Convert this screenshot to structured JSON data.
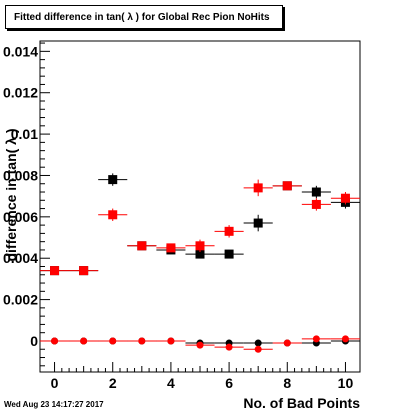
{
  "header": {
    "title": "Fitted difference in tan( λ ) for Global Rec Pion NoHits"
  },
  "footer": {
    "timestamp": "Wed Aug 23 14:17:27 2017"
  },
  "chart_data": {
    "type": "scatter",
    "title": "Fitted difference in tan( λ ) for Global Rec Pion NoHits",
    "xlabel": "No. of Bad Points",
    "ylabel": "difference in tan( λ )",
    "xlim": [
      -0.5,
      10.5
    ],
    "ylim": [
      -0.0015,
      0.0145
    ],
    "x_ticks": [
      "0",
      "2",
      "4",
      "6",
      "8",
      "10"
    ],
    "y_ticks": [
      "0",
      "0.002",
      "0.004",
      "0.006",
      "0.008",
      "0.01",
      "0.012",
      "0.014"
    ],
    "grid": false,
    "series": [
      {
        "marker": "square",
        "color": "#000000",
        "x": [
          0,
          1,
          2,
          3,
          4,
          5,
          6,
          7,
          8,
          9,
          10
        ],
        "y": [
          0.0034,
          0.0034,
          0.0078,
          0.0046,
          0.0044,
          0.0042,
          0.0042,
          0.0057,
          0.0075,
          0.0072,
          0.0067
        ],
        "y_err": [
          0.0001,
          0.0001,
          0.0003,
          0.0001,
          0.0002,
          0.0002,
          0.0002,
          0.0004,
          0.0002,
          0.0003,
          0.0003
        ]
      },
      {
        "marker": "square",
        "color": "#ff0000",
        "x": [
          0,
          1,
          2,
          3,
          4,
          5,
          6,
          7,
          8,
          9,
          10
        ],
        "y": [
          0.0034,
          0.0034,
          0.0061,
          0.0046,
          0.0045,
          0.0046,
          0.0053,
          0.0074,
          0.0075,
          0.0066,
          0.0069
        ],
        "y_err": [
          0.0001,
          0.0001,
          0.0003,
          0.0001,
          0.0002,
          0.0003,
          0.0003,
          0.0004,
          0.0002,
          0.0003,
          0.0003
        ]
      },
      {
        "marker": "circle",
        "color": "#000000",
        "x": [
          0,
          1,
          2,
          3,
          4,
          5,
          6,
          7,
          8,
          9,
          10
        ],
        "y": [
          0.0,
          0.0,
          0.0,
          0.0,
          0.0,
          -0.0001,
          -0.0001,
          -0.0001,
          -0.0001,
          -0.0001,
          0.0
        ],
        "y_err": [
          5e-05,
          5e-05,
          5e-05,
          5e-05,
          5e-05,
          5e-05,
          5e-05,
          5e-05,
          5e-05,
          5e-05,
          5e-05
        ]
      },
      {
        "marker": "circle",
        "color": "#ff0000",
        "x": [
          0,
          1,
          2,
          3,
          4,
          5,
          6,
          7,
          8,
          9,
          10
        ],
        "y": [
          0.0,
          0.0,
          0.0,
          0.0,
          0.0,
          -0.0002,
          -0.0003,
          -0.0004,
          -0.0001,
          0.0001,
          0.0001
        ],
        "y_err": [
          5e-05,
          5e-05,
          5e-05,
          5e-05,
          5e-05,
          5e-05,
          5e-05,
          5e-05,
          5e-05,
          5e-05,
          5e-05
        ]
      }
    ]
  }
}
